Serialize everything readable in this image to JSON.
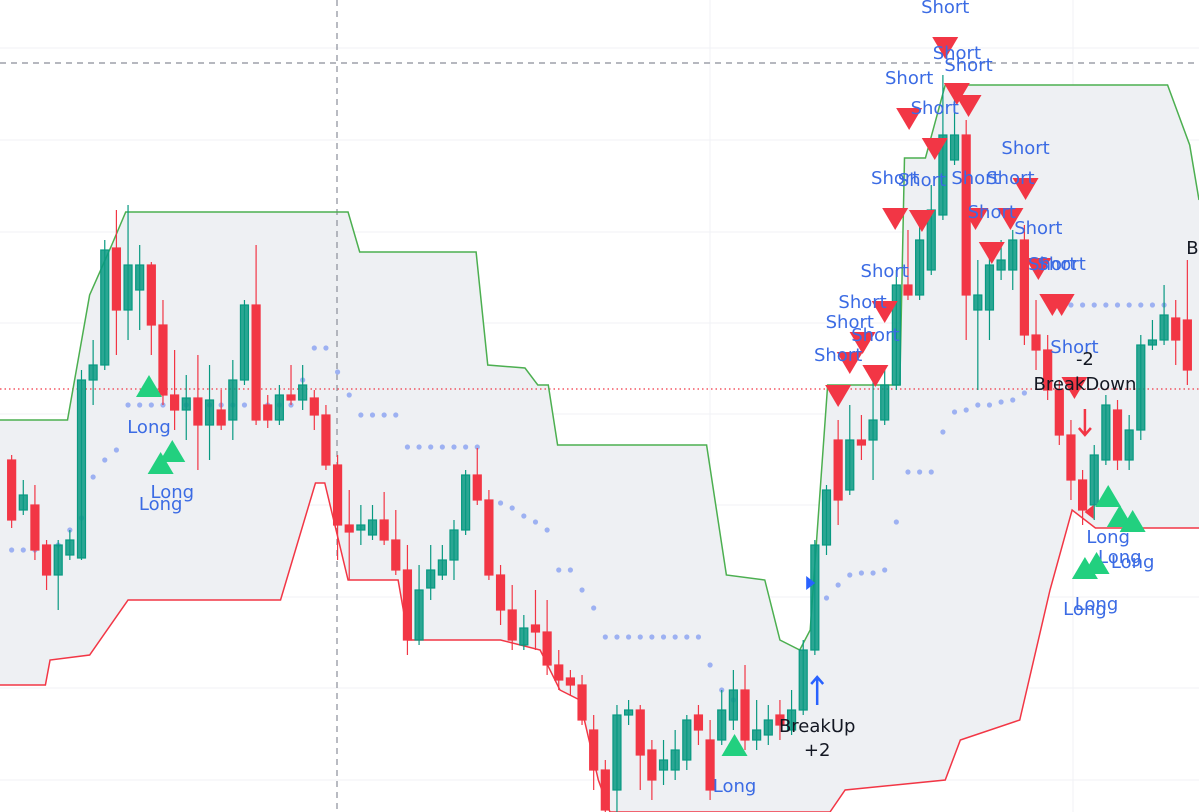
{
  "chart_data": {
    "type": "candlestick",
    "xlim": [
      -1,
      102
    ],
    "ylim": [
      0,
      812
    ],
    "up_color": "#089981",
    "down_color": "#f23645",
    "open": [
      352,
      302,
      307,
      267,
      237,
      257,
      254,
      432,
      447,
      564,
      502,
      522,
      547,
      487,
      417,
      402,
      414,
      387,
      402,
      392,
      432,
      507,
      407,
      392,
      417,
      412,
      414,
      397,
      347,
      287,
      282,
      277,
      292,
      272,
      242,
      172,
      224,
      237,
      252,
      282,
      337,
      312,
      237,
      202,
      167,
      187,
      180,
      147,
      134,
      127,
      82,
      42,
      22,
      97,
      102,
      62,
      42,
      42,
      52,
      97,
      72,
      72,
      92,
      122,
      72,
      77,
      97,
      82,
      102,
      162,
      267,
      372,
      322,
      372,
      372,
      392,
      427,
      527,
      517,
      542,
      597,
      652,
      677,
      502,
      502,
      542,
      542,
      572,
      477,
      462,
      422,
      377,
      332,
      307,
      352,
      402,
      352,
      382,
      467,
      472,
      494,
      492
    ],
    "high": [
      357,
      332,
      327,
      272,
      272,
      282,
      442,
      472,
      572,
      602,
      607,
      567,
      550,
      512,
      462,
      437,
      457,
      447,
      422,
      452,
      512,
      567,
      417,
      427,
      447,
      447,
      422,
      407,
      357,
      322,
      307,
      307,
      320,
      302,
      267,
      247,
      267,
      267,
      292,
      342,
      364,
      322,
      247,
      227,
      197,
      222,
      212,
      162,
      142,
      137,
      97,
      52,
      107,
      112,
      107,
      72,
      72,
      82,
      97,
      107,
      92,
      122,
      142,
      147,
      112,
      107,
      112,
      122,
      172,
      272,
      327,
      392,
      407,
      397,
      432,
      447,
      542,
      582,
      602,
      627,
      737,
      727,
      692,
      552,
      557,
      572,
      582,
      587,
      512,
      477,
      432,
      392,
      342,
      367,
      417,
      412,
      397,
      477,
      492,
      527,
      512,
      552
    ],
    "low": [
      284,
      297,
      252,
      222,
      202,
      252,
      252,
      407,
      442,
      457,
      472,
      482,
      457,
      407,
      382,
      372,
      342,
      352,
      382,
      372,
      427,
      387,
      384,
      387,
      407,
      402,
      382,
      342,
      252,
      232,
      267,
      272,
      267,
      237,
      157,
      167,
      212,
      232,
      232,
      277,
      307,
      232,
      187,
      162,
      162,
      162,
      137,
      122,
      117,
      87,
      22,
      0,
      0,
      87,
      22,
      12,
      27,
      32,
      42,
      67,
      12,
      67,
      82,
      62,
      62,
      67,
      72,
      77,
      97,
      157,
      257,
      287,
      317,
      352,
      332,
      387,
      422,
      512,
      512,
      537,
      592,
      647,
      472,
      422,
      472,
      532,
      522,
      467,
      442,
      412,
      367,
      312,
      287,
      292,
      347,
      342,
      342,
      372,
      462,
      467,
      447,
      427
    ],
    "close": [
      292,
      317,
      262,
      237,
      267,
      272,
      432,
      447,
      562,
      502,
      547,
      547,
      487,
      417,
      402,
      414,
      387,
      412,
      387,
      432,
      507,
      392,
      392,
      417,
      412,
      427,
      397,
      347,
      287,
      280,
      287,
      292,
      272,
      242,
      172,
      222,
      242,
      252,
      282,
      337,
      312,
      237,
      202,
      172,
      184,
      180,
      147,
      132,
      127,
      92,
      42,
      2,
      97,
      102,
      57,
      32,
      52,
      62,
      92,
      82,
      22,
      102,
      122,
      72,
      82,
      92,
      87,
      102,
      162,
      267,
      322,
      312,
      372,
      367,
      392,
      427,
      527,
      517,
      572,
      602,
      677,
      677,
      517,
      517,
      547,
      552,
      572,
      477,
      462,
      422,
      377,
      332,
      302,
      357,
      407,
      352,
      382,
      467,
      472,
      497,
      472,
      442
    ],
    "channel": {
      "fill": "#eef0f3",
      "upper": {
        "color": "#4caf50",
        "x": [
          -1,
          4.8,
          6.7,
          8.6,
          9.8,
          28.9,
          29.9,
          39.9,
          40.9,
          44.1,
          45.2,
          46.1,
          46.9,
          59.7,
          61.4,
          64.7,
          66,
          67.7,
          68.6,
          70.1,
          76.3,
          76.7,
          78.5,
          80.2,
          99.3,
          101.2,
          102
        ],
        "values": [
          392,
          392,
          517,
          567,
          600,
          600,
          560,
          560,
          447,
          444,
          427,
          427,
          367,
          367,
          237,
          232,
          172,
          162,
          182,
          427,
          427,
          654,
          654,
          727,
          727,
          667,
          612
        ]
      },
      "lower": {
        "color": "#f23645",
        "x": [
          -1,
          2.9,
          3.3,
          6.7,
          10,
          23.1,
          26.1,
          26.9,
          28.9,
          33.2,
          34.1,
          42,
          45.4,
          47.1,
          48.8,
          50.4,
          51.4,
          70.3,
          71.6,
          80.2,
          81.5,
          86.6,
          89.2,
          91.1,
          93.1,
          102
        ],
        "values": [
          127,
          127,
          152,
          157,
          212,
          212,
          329,
          329,
          232,
          232,
          172,
          172,
          162,
          122,
          112,
          32,
          0,
          0,
          22,
          32,
          72,
          92,
          222,
          302,
          284,
          284
        ]
      }
    },
    "sar_color": "#9db1f2",
    "sar": [
      262,
      262,
      262,
      262,
      267,
      282,
      294,
      335,
      352,
      362,
      407,
      407,
      407,
      407,
      407,
      407,
      407,
      407,
      407,
      407,
      407,
      407,
      407,
      407,
      407,
      432,
      464,
      464,
      440,
      417,
      397,
      397,
      397,
      397,
      365,
      365,
      365,
      365,
      365,
      365,
      365,
      309,
      309,
      304,
      296,
      290,
      282,
      242,
      242,
      222,
      204,
      175,
      175,
      175,
      175,
      175,
      175,
      175,
      175,
      175,
      147,
      122,
      112,
      109,
      null,
      null,
      null,
      null,
      null,
      null,
      214,
      227,
      237,
      239,
      239,
      242,
      290,
      340,
      340,
      340,
      380,
      400,
      402,
      407,
      407,
      410,
      412,
      419,
      null,
      null,
      507,
      507,
      507,
      507,
      507,
      507,
      507,
      507,
      507,
      507,
      null,
      null
    ],
    "signal_text_color": "#3b6be4",
    "short_color": "#f23645",
    "long_color": "#22d07f",
    "signals": [
      {
        "label": "Short",
        "x": 80.2,
        "y": 804
      },
      {
        "label": "Short",
        "x": 81.2,
        "y": 758
      },
      {
        "label": "Short",
        "x": 82.2,
        "y": 746
      },
      {
        "label": "Short",
        "x": 77.1,
        "y": 733
      },
      {
        "label": "Short",
        "x": 79.3,
        "y": 703
      },
      {
        "label": "Short",
        "x": 87.1,
        "y": 663
      },
      {
        "label": "Short",
        "x": 75.9,
        "y": 633
      },
      {
        "label": "Short",
        "x": 78.2,
        "y": 631
      },
      {
        "label": "Short",
        "x": 82.8,
        "y": 633
      },
      {
        "label": "Short",
        "x": 85.8,
        "y": 633
      },
      {
        "label": "Short",
        "x": 84.2,
        "y": 599
      },
      {
        "label": "Short",
        "x": 88.2,
        "y": 583
      },
      {
        "label": "Short",
        "x": 75.0,
        "y": 540
      },
      {
        "label": "Short",
        "x": 89.4,
        "y": 547
      },
      {
        "label": "Short",
        "x": 90.2,
        "y": 547
      },
      {
        "label": "Short",
        "x": 73.1,
        "y": 509
      },
      {
        "label": "Short",
        "x": 72.0,
        "y": 489
      },
      {
        "label": "Short",
        "x": 74.2,
        "y": 476
      },
      {
        "label": "Short",
        "x": 71.0,
        "y": 456
      },
      {
        "label": "Short",
        "x": 91.3,
        "y": 464
      },
      {
        "label": "Long",
        "x": 11.8,
        "y": 384
      },
      {
        "label": "Long",
        "x": 13.8,
        "y": 319
      },
      {
        "label": "Long",
        "x": 12.8,
        "y": 307
      },
      {
        "label": "Long",
        "x": 94.2,
        "y": 274
      },
      {
        "label": "Long",
        "x": 95.2,
        "y": 254
      },
      {
        "label": "Long",
        "x": 96.3,
        "y": 249
      },
      {
        "label": "Long",
        "x": 92.2,
        "y": 202
      },
      {
        "label": "Long",
        "x": 93.2,
        "y": 207
      },
      {
        "label": "Long",
        "x": 62.1,
        "y": 25
      }
    ],
    "events": [
      {
        "label": "BreakUp",
        "text": "+2",
        "direction": "up",
        "color": "#2962ff",
        "x": 69.2,
        "y": 85
      },
      {
        "label": "BreakDown",
        "text": "-2",
        "direction": "down",
        "color": "#f23645",
        "x": 92.2,
        "y": 427
      }
    ],
    "markers": [
      {
        "x": 68.6,
        "y": 229,
        "color": "#2962ff",
        "direction": "right"
      },
      {
        "x": 92.6,
        "y": 300,
        "color": "#f23645",
        "direction": "left"
      }
    ],
    "texts": [
      {
        "text": "B",
        "x": 100.9,
        "y": 563
      }
    ],
    "price_line": {
      "value": 423,
      "color": "#f23645"
    },
    "crosshair": {
      "x": 27.95,
      "y": 749,
      "color": "#8a8e99"
    }
  }
}
